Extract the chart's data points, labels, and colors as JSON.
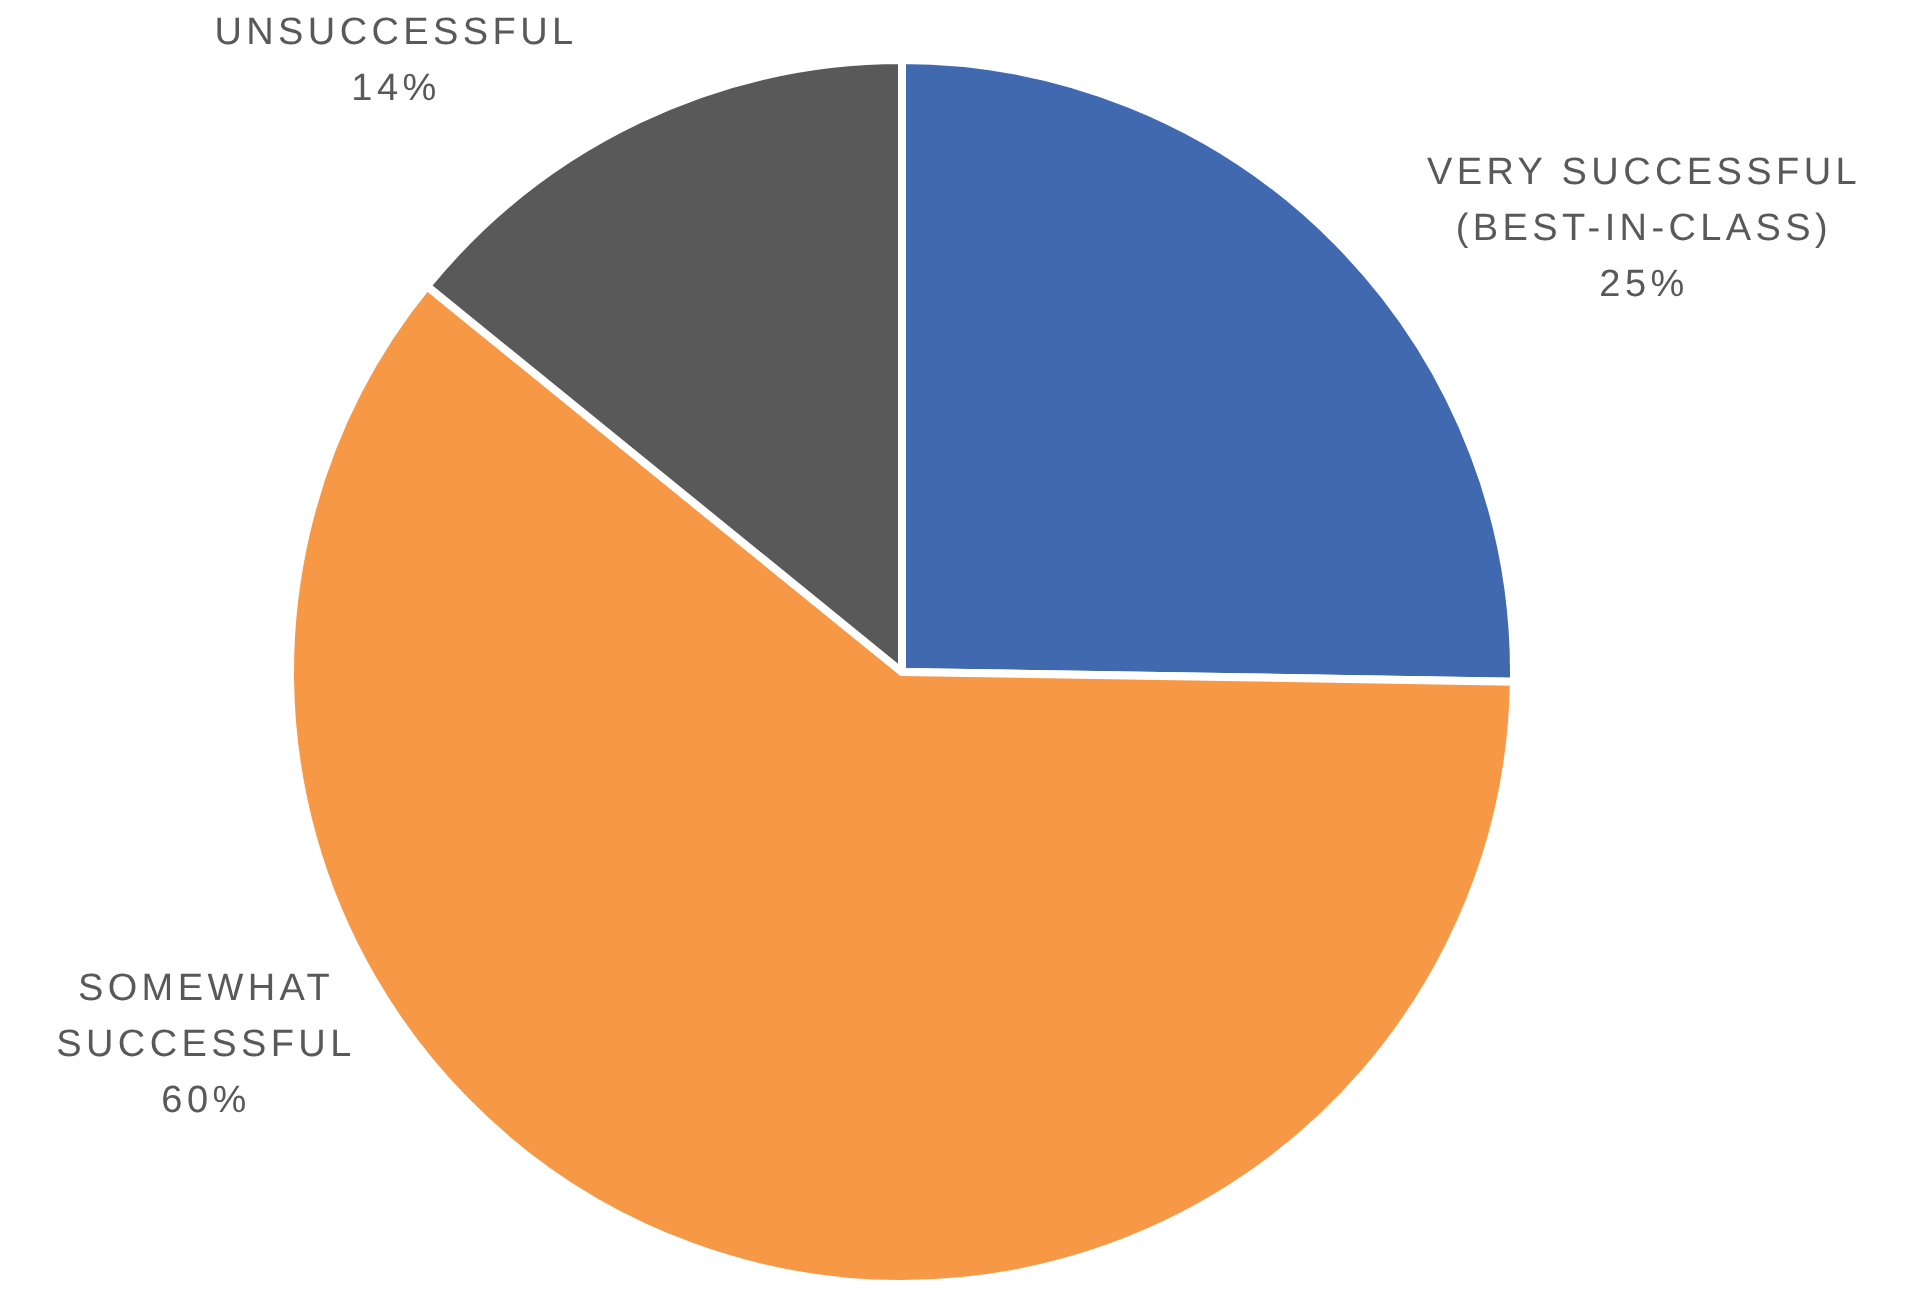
{
  "chart_data": {
    "type": "pie",
    "categories": [
      "VERY SUCCESSFUL (BEST-IN-CLASS)",
      "SOMEWHAT SUCCESSFUL",
      "UNSUCCESSFUL"
    ],
    "values": [
      25,
      60,
      14
    ],
    "colors": [
      "#4169b0",
      "#f79846",
      "#595959"
    ],
    "value_labels": [
      "25%",
      "60%",
      "14%"
    ]
  }
}
